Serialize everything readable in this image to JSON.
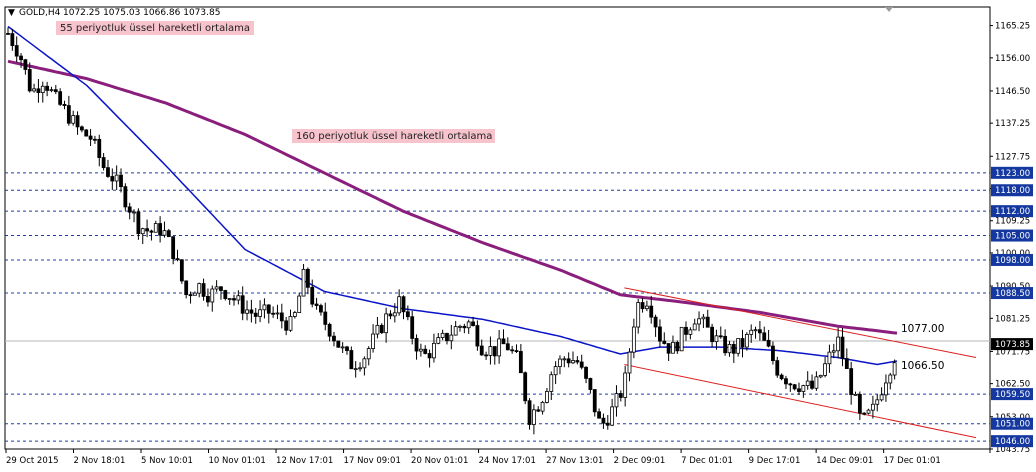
{
  "window": {
    "symbol": "GOLD,H4",
    "ohlc": "1072.25 1075.03 1066.86 1073.85",
    "icon": "down-arrow-icon",
    "scroll_marker": "shift-triangle-icon"
  },
  "annotations": {
    "ema55": "55 periyotluk üssel hareketli ortalama",
    "ema160": "160 periyotluk üssel hareketli ortalama",
    "label_upper": "1077.00",
    "label_lower": "1066.50"
  },
  "colors": {
    "candle": "#000000",
    "ema55": "#0a14c8",
    "ema160": "#8a1e7c",
    "channel": "#dd2020",
    "level_line": "#1f3fa0",
    "level_tag": "#1438a0",
    "current_tag": "#000000",
    "annotation_bg": "#f7c3cc"
  },
  "chart_data": {
    "type": "candlestick",
    "symbol": "GOLD",
    "timeframe": "H4",
    "ylim": [
      1043.75,
      1168.0
    ],
    "y_ticks": [
      "1165.25",
      "1156.00",
      "1146.50",
      "1137.25",
      "1127.75",
      "1118.50",
      "1109.25",
      "1100.00",
      "1090.50",
      "1081.25",
      "1071.75",
      "1062.50",
      "1053.00",
      "1043.75"
    ],
    "x_labels": [
      "29 Oct 2015",
      "2 Nov 18:01",
      "5 Nov 10:01",
      "10 Nov 01:01",
      "12 Nov 17:01",
      "17 Nov 09:01",
      "20 Nov 01:01",
      "24 Nov 17:01",
      "27 Nov 13:01",
      "2 Dec 09:01",
      "7 Dec 01:01",
      "9 Dec 17:01",
      "14 Dec 09:01",
      "17 Dec 01:01"
    ],
    "levels": [
      "1123.00",
      "1118.00",
      "1112.00",
      "1105.00",
      "1098.00",
      "1088.50",
      "1059.50",
      "1051.00",
      "1046.00"
    ],
    "current_price": "1073.85",
    "price_path": [
      [
        0,
        1163
      ],
      [
        6,
        1157
      ],
      [
        12,
        1146
      ],
      [
        18,
        1150
      ],
      [
        24,
        1144
      ],
      [
        30,
        1140
      ],
      [
        36,
        1135
      ],
      [
        42,
        1133
      ],
      [
        48,
        1125
      ],
      [
        54,
        1121
      ],
      [
        60,
        1115
      ],
      [
        66,
        1108
      ],
      [
        72,
        1106
      ],
      [
        78,
        1107
      ],
      [
        84,
        1100
      ],
      [
        90,
        1088
      ],
      [
        96,
        1091
      ],
      [
        102,
        1088
      ],
      [
        108,
        1090
      ],
      [
        114,
        1087
      ],
      [
        120,
        1084
      ],
      [
        126,
        1082
      ],
      [
        132,
        1083
      ],
      [
        138,
        1081
      ],
      [
        144,
        1079
      ],
      [
        150,
        1094
      ],
      [
        156,
        1083
      ],
      [
        162,
        1079
      ],
      [
        168,
        1073
      ],
      [
        174,
        1068
      ],
      [
        180,
        1070
      ],
      [
        186,
        1076
      ],
      [
        192,
        1082
      ],
      [
        198,
        1086
      ],
      [
        204,
        1077
      ],
      [
        210,
        1070
      ],
      [
        216,
        1073
      ],
      [
        222,
        1076
      ],
      [
        228,
        1079
      ],
      [
        234,
        1080
      ],
      [
        240,
        1073
      ],
      [
        246,
        1072
      ],
      [
        252,
        1074
      ],
      [
        258,
        1069
      ],
      [
        264,
        1053
      ],
      [
        270,
        1058
      ],
      [
        276,
        1067
      ],
      [
        282,
        1070
      ],
      [
        288,
        1069
      ],
      [
        294,
        1061
      ],
      [
        300,
        1050
      ],
      [
        306,
        1055
      ],
      [
        312,
        1062
      ],
      [
        318,
        1085
      ],
      [
        324,
        1087
      ],
      [
        330,
        1076
      ],
      [
        336,
        1072
      ],
      [
        342,
        1077
      ],
      [
        348,
        1082
      ],
      [
        354,
        1078
      ],
      [
        360,
        1074
      ],
      [
        366,
        1072
      ],
      [
        372,
        1074
      ],
      [
        378,
        1078
      ],
      [
        384,
        1073
      ],
      [
        390,
        1066
      ],
      [
        396,
        1063
      ],
      [
        402,
        1062
      ],
      [
        408,
        1061
      ],
      [
        414,
        1068
      ],
      [
        420,
        1075
      ],
      [
        426,
        1063
      ],
      [
        432,
        1051
      ],
      [
        438,
        1055
      ],
      [
        444,
        1064
      ],
      [
        450,
        1072
      ]
    ],
    "ema55_path": [
      [
        0,
        1165
      ],
      [
        40,
        1148
      ],
      [
        80,
        1125
      ],
      [
        120,
        1101
      ],
      [
        160,
        1089
      ],
      [
        200,
        1084
      ],
      [
        240,
        1081
      ],
      [
        280,
        1076
      ],
      [
        310,
        1071
      ],
      [
        330,
        1073
      ],
      [
        360,
        1073
      ],
      [
        390,
        1072
      ],
      [
        420,
        1070
      ],
      [
        440,
        1068
      ],
      [
        450,
        1069
      ]
    ],
    "ema160_path": [
      [
        0,
        1155
      ],
      [
        40,
        1150
      ],
      [
        80,
        1143
      ],
      [
        120,
        1134
      ],
      [
        160,
        1123
      ],
      [
        200,
        1112
      ],
      [
        240,
        1103
      ],
      [
        280,
        1095
      ],
      [
        310,
        1088
      ],
      [
        340,
        1086
      ],
      [
        380,
        1083
      ],
      [
        420,
        1079
      ],
      [
        450,
        1077
      ]
    ],
    "channel_upper": [
      [
        312,
        1090
      ],
      [
        490,
        1070
      ]
    ],
    "channel_lower": [
      [
        312,
        1068
      ],
      [
        490,
        1047
      ]
    ]
  }
}
